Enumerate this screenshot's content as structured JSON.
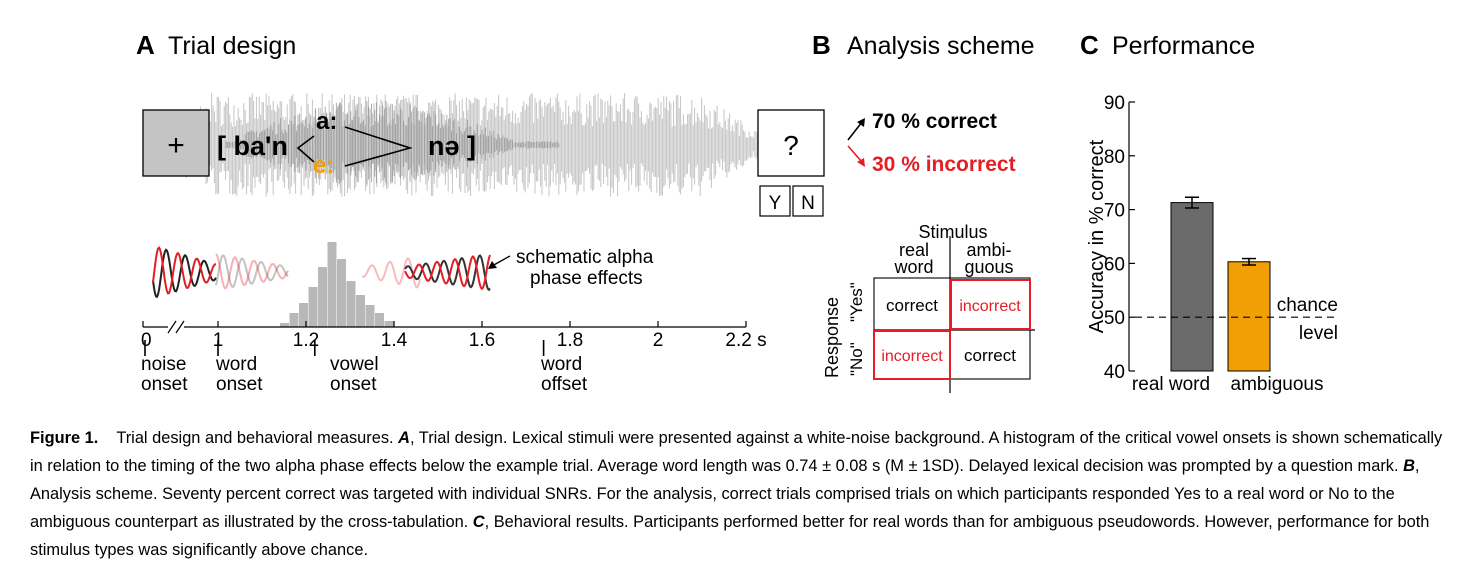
{
  "panels": {
    "a": {
      "letter": "A",
      "title": "Trial design"
    },
    "b": {
      "letter": "B",
      "title": "Analysis scheme"
    },
    "c": {
      "letter": "C",
      "title": "Performance"
    }
  },
  "trial": {
    "fixation": "+",
    "stimulus_left": "[ ba'n",
    "vowel_top": "a:",
    "vowel_bottom": "e:",
    "stimulus_right": "nə ]",
    "prompt": "?",
    "yes_key": "Y",
    "no_key": "N",
    "alpha_annotation_line1": "schematic alpha",
    "alpha_annotation_line2": "phase effects",
    "timeline_ticks": [
      {
        "t": 0,
        "label": "0"
      },
      {
        "t": 1.0,
        "label": "1"
      },
      {
        "t": 1.2,
        "label": "1.2"
      },
      {
        "t": 1.4,
        "label": "1.4"
      },
      {
        "t": 1.6,
        "label": "1.6"
      },
      {
        "t": 1.8,
        "label": "1.8"
      },
      {
        "t": 2.0,
        "label": "2"
      },
      {
        "t": 2.2,
        "label": "2.2 s"
      }
    ],
    "events": [
      {
        "label1": "noise",
        "label2": "onset"
      },
      {
        "label1": "word",
        "label2": "onset"
      },
      {
        "label1": "vowel",
        "label2": "onset"
      },
      {
        "label1": "word",
        "label2": "offset"
      }
    ]
  },
  "analysis": {
    "correct_label": "70 % correct",
    "incorrect_label": "30 % incorrect",
    "stimulus_header": "Stimulus",
    "col1_line1": "real",
    "col1_line2": "word",
    "col2_line1": "ambi-",
    "col2_line2": "guous",
    "response_header": "Response",
    "row_yes": "\"Yes\"",
    "row_no": "\"No\"",
    "cells": [
      [
        "correct",
        "incorrect"
      ],
      [
        "incorrect",
        "correct"
      ]
    ]
  },
  "chart_data": {
    "type": "bar",
    "categories": [
      "real word",
      "ambiguous"
    ],
    "values": [
      71.3,
      60.3
    ],
    "errors": [
      1.0,
      0.6
    ],
    "colors": [
      "#6b6b6b",
      "#f29f05"
    ],
    "ylabel": "Accuracy in % correct",
    "ylim": [
      40,
      90
    ],
    "yticks": [
      40,
      50,
      60,
      70,
      80,
      90
    ],
    "chance_value": 50,
    "chance_label_line1": "chance",
    "chance_label_line2": "level"
  },
  "caption": {
    "figure_label": "Figure 1.",
    "text_1": "Trial design and behavioral measures. ",
    "a_letter": "A",
    "text_2": ", Trial design. Lexical stimuli were presented against a white-noise background. A histogram of the critical vowel onsets is shown schematically in relation to the timing of the two alpha phase effects below the example trial. Average word length was 0.74 ± 0.08 s (M ± 1SD). Delayed lexical decision was prompted by a question mark. ",
    "b_letter": "B",
    "text_3": ", Analysis scheme. Seventy percent correct was targeted with individual SNRs. For the analysis, correct trials comprised trials on which participants responded Yes to a real word or No to the ambiguous counterpart as illustrated by the cross-tabulation. ",
    "c_letter": "C",
    "text_4": ", Behavioral results. Participants performed better for real words than for ambiguous pseudowords. However, performance for both stimulus types was significantly above chance."
  },
  "colors": {
    "red": "#e31e24",
    "orange": "#f29f05",
    "waveform": "#c4c4c4",
    "waveform_dark": "#8a8a8a",
    "bar_gray": "#6b6b6b"
  }
}
